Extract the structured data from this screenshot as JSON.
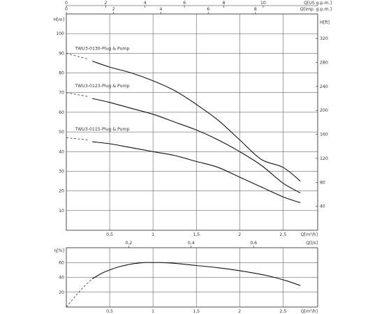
{
  "chart_data": [
    {
      "type": "line",
      "title": "",
      "x_axis_bottom": {
        "label": "Q[m³/h]",
        "range": [
          0,
          2.9
        ],
        "ticks": [
          {
            "v": 0.5,
            "label": "0,5"
          },
          {
            "v": 1,
            "label": "1"
          },
          {
            "v": 1.5,
            "label": "1,5"
          },
          {
            "v": 2,
            "label": "2"
          },
          {
            "v": 2.5,
            "label": "2,5"
          }
        ]
      },
      "x_axis_top_1": {
        "label": "Q[US g.p.m.]",
        "ticks": [
          {
            "v": 0,
            "label": "0"
          },
          {
            "v": 2,
            "label": "2"
          },
          {
            "v": 4,
            "label": "4"
          },
          {
            "v": 6,
            "label": "6"
          },
          {
            "v": 8,
            "label": "8"
          },
          {
            "v": 10,
            "label": "10"
          }
        ]
      },
      "x_axis_top_2": {
        "label": "Q[Imp. g.p.m.]",
        "ticks": [
          {
            "v": 0,
            "label": "0"
          },
          {
            "v": 2,
            "label": "2"
          },
          {
            "v": 4,
            "label": "4"
          },
          {
            "v": 6,
            "label": "6"
          },
          {
            "v": 8,
            "label": "8"
          }
        ]
      },
      "y_axis_left": {
        "label": "H[m]",
        "range": [
          0,
          110
        ],
        "ticks": [
          {
            "v": 10,
            "label": "10"
          },
          {
            "v": 20,
            "label": "20"
          },
          {
            "v": 30,
            "label": "30"
          },
          {
            "v": 40,
            "label": "40"
          },
          {
            "v": 50,
            "label": "50"
          },
          {
            "v": 60,
            "label": "60"
          },
          {
            "v": 70,
            "label": "70"
          },
          {
            "v": 80,
            "label": "80"
          },
          {
            "v": 90,
            "label": "90"
          },
          {
            "v": 100,
            "label": "100"
          }
        ]
      },
      "y_axis_right": {
        "label": "H[ft]",
        "ticks": [
          {
            "v": 40,
            "label": "40"
          },
          {
            "v": 80,
            "label": "80"
          },
          {
            "v": 120,
            "label": "120"
          },
          {
            "v": 160,
            "label": "160"
          },
          {
            "v": 200,
            "label": "200"
          },
          {
            "v": 240,
            "label": "240"
          },
          {
            "v": 280,
            "label": "280"
          },
          {
            "v": 320,
            "label": "320"
          }
        ]
      },
      "grid": true,
      "series": [
        {
          "name": "TWU3-0130-Plug & Pump",
          "x": [
            0.3,
            0.5,
            0.75,
            1.0,
            1.25,
            1.5,
            1.75,
            2.0,
            2.25,
            2.5,
            2.7
          ],
          "y": [
            86,
            83,
            80,
            76,
            71,
            64,
            56,
            46,
            36,
            32,
            25
          ],
          "dashed_extension": {
            "x": [
              0,
              0.25
            ],
            "y": [
              90,
              87
            ]
          }
        },
        {
          "name": "TWU3-0123-Plug & Pump",
          "x": [
            0.3,
            0.5,
            0.75,
            1.0,
            1.25,
            1.5,
            1.75,
            2.0,
            2.25,
            2.5,
            2.7
          ],
          "y": [
            67,
            65,
            62,
            59,
            55,
            51,
            46,
            40,
            33,
            24,
            19
          ],
          "dashed_extension": {
            "x": [
              0,
              0.25
            ],
            "y": [
              70,
              68
            ]
          }
        },
        {
          "name": "TWU3-0115-Plug & Pump",
          "x": [
            0.3,
            0.5,
            0.75,
            1.0,
            1.25,
            1.5,
            1.75,
            2.0,
            2.25,
            2.5,
            2.7
          ],
          "y": [
            45,
            44,
            42,
            40,
            38,
            35,
            32,
            27,
            22,
            17,
            14
          ],
          "dashed_extension": {
            "x": [
              0,
              0.25
            ],
            "y": [
              47,
              46
            ]
          }
        }
      ]
    },
    {
      "type": "line",
      "title": "",
      "x_axis_bottom": {
        "label": "Q[m³/h]",
        "range": [
          0,
          2.9
        ],
        "ticks": [
          {
            "v": 0.5,
            "label": "0,5"
          },
          {
            "v": 1,
            "label": "1"
          },
          {
            "v": 1.5,
            "label": "1,5"
          },
          {
            "v": 2,
            "label": "2"
          },
          {
            "v": 2.5,
            "label": "2,5"
          }
        ]
      },
      "x_axis_top": {
        "label": "Q[l/s]",
        "ticks": [
          {
            "v": 0.2,
            "label": "0,2"
          },
          {
            "v": 0.4,
            "label": "0,4"
          },
          {
            "v": 0.6,
            "label": "0,6"
          }
        ]
      },
      "y_axis_left": {
        "label": "η[%]",
        "range": [
          0,
          80
        ],
        "ticks": [
          {
            "v": 20,
            "label": "20"
          },
          {
            "v": 40,
            "label": "40"
          },
          {
            "v": 60,
            "label": "60"
          }
        ]
      },
      "grid": true,
      "series": [
        {
          "x": [
            0.3,
            0.4,
            0.5,
            0.6,
            0.75,
            0.9,
            1.0,
            1.1,
            1.25,
            1.5,
            1.75,
            2.0,
            2.25,
            2.4,
            2.55,
            2.7
          ],
          "y": [
            38,
            45,
            50,
            54,
            58,
            60,
            60,
            60,
            59,
            56,
            53,
            49,
            44,
            40,
            35,
            29
          ],
          "dashed_extension": {
            "x": [
              0.0,
              0.1,
              0.2,
              0.3
            ],
            "y": [
              0,
              14,
              27,
              38
            ]
          }
        }
      ]
    }
  ]
}
